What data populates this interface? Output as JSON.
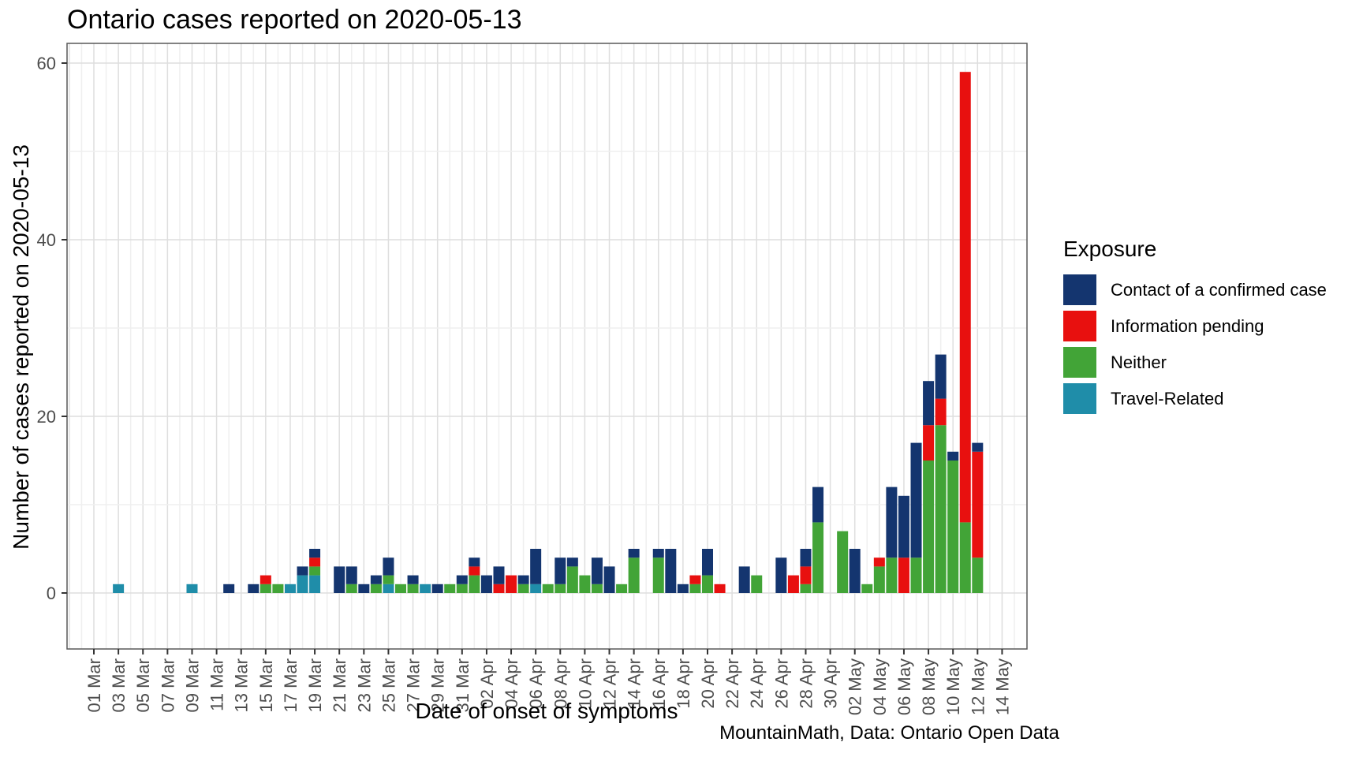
{
  "chart_data": {
    "type": "bar",
    "title": "Ontario cases reported on 2020-05-13",
    "xlabel": "Date of onset of symptoms",
    "ylabel": "Number of cases reported on 2020-05-13",
    "caption": "MountainMath, Data: Ontario Open Data",
    "legend": {
      "title": "Exposure",
      "position": "right",
      "items": [
        {
          "key": "contact",
          "label": "Contact of a confirmed case",
          "color": "#14356F"
        },
        {
          "key": "pending",
          "label": "Information pending",
          "color": "#E8100F"
        },
        {
          "key": "neither",
          "label": "Neither",
          "color": "#42A437"
        },
        {
          "key": "travel",
          "label": "Travel-Related",
          "color": "#1F8DA9"
        }
      ]
    },
    "stack_order_bottom_to_top": [
      "travel",
      "neither",
      "pending",
      "contact"
    ],
    "y_axis": {
      "major_ticks": [
        0,
        20,
        40,
        60
      ],
      "minor_gridlines": [
        10,
        30,
        50
      ],
      "range": [
        0,
        62
      ]
    },
    "x_axis": {
      "grid": "every day, major line on labeled days",
      "tick_labels": [
        "01 Mar",
        "03 Mar",
        "05 Mar",
        "07 Mar",
        "09 Mar",
        "11 Mar",
        "13 Mar",
        "15 Mar",
        "17 Mar",
        "19 Mar",
        "21 Mar",
        "23 Mar",
        "25 Mar",
        "27 Mar",
        "29 Mar",
        "31 Mar",
        "02 Apr",
        "04 Apr",
        "06 Apr",
        "08 Apr",
        "10 Apr",
        "12 Apr",
        "14 Apr",
        "16 Apr",
        "18 Apr",
        "20 Apr",
        "22 Apr",
        "24 Apr",
        "26 Apr",
        "28 Apr",
        "30 Apr",
        "02 May",
        "04 May",
        "06 May",
        "08 May",
        "10 May",
        "12 May",
        "14 May"
      ]
    },
    "bars": [
      {
        "date": "03 Mar",
        "travel": 1,
        "neither": 0,
        "pending": 0,
        "contact": 0
      },
      {
        "date": "09 Mar",
        "travel": 1,
        "neither": 0,
        "pending": 0,
        "contact": 0
      },
      {
        "date": "12 Mar",
        "travel": 0,
        "neither": 0,
        "pending": 0,
        "contact": 1
      },
      {
        "date": "14 Mar",
        "travel": 0,
        "neither": 0,
        "pending": 0,
        "contact": 1
      },
      {
        "date": "15 Mar",
        "travel": 0,
        "neither": 1,
        "pending": 1,
        "contact": 0
      },
      {
        "date": "16 Mar",
        "travel": 0,
        "neither": 1,
        "pending": 0,
        "contact": 0
      },
      {
        "date": "17 Mar",
        "travel": 1,
        "neither": 0,
        "pending": 0,
        "contact": 0
      },
      {
        "date": "18 Mar",
        "travel": 2,
        "neither": 0,
        "pending": 0,
        "contact": 1
      },
      {
        "date": "19 Mar",
        "travel": 2,
        "neither": 1,
        "pending": 1,
        "contact": 1
      },
      {
        "date": "21 Mar",
        "travel": 0,
        "neither": 0,
        "pending": 0,
        "contact": 3
      },
      {
        "date": "22 Mar",
        "travel": 0,
        "neither": 1,
        "pending": 0,
        "contact": 2
      },
      {
        "date": "23 Mar",
        "travel": 0,
        "neither": 0,
        "pending": 0,
        "contact": 1
      },
      {
        "date": "24 Mar",
        "travel": 0,
        "neither": 1,
        "pending": 0,
        "contact": 1
      },
      {
        "date": "25 Mar",
        "travel": 1,
        "neither": 1,
        "pending": 0,
        "contact": 2
      },
      {
        "date": "26 Mar",
        "travel": 0,
        "neither": 1,
        "pending": 0,
        "contact": 0
      },
      {
        "date": "27 Mar",
        "travel": 0,
        "neither": 1,
        "pending": 0,
        "contact": 1
      },
      {
        "date": "28 Mar",
        "travel": 1,
        "neither": 0,
        "pending": 0,
        "contact": 0
      },
      {
        "date": "29 Mar",
        "travel": 0,
        "neither": 0,
        "pending": 0,
        "contact": 1
      },
      {
        "date": "30 Mar",
        "travel": 0,
        "neither": 1,
        "pending": 0,
        "contact": 0
      },
      {
        "date": "31 Mar",
        "travel": 0,
        "neither": 1,
        "pending": 0,
        "contact": 1
      },
      {
        "date": "01 Apr",
        "travel": 0,
        "neither": 2,
        "pending": 1,
        "contact": 1
      },
      {
        "date": "02 Apr",
        "travel": 0,
        "neither": 0,
        "pending": 0,
        "contact": 2
      },
      {
        "date": "03 Apr",
        "travel": 0,
        "neither": 0,
        "pending": 1,
        "contact": 2
      },
      {
        "date": "04 Apr",
        "travel": 0,
        "neither": 0,
        "pending": 2,
        "contact": 0
      },
      {
        "date": "05 Apr",
        "travel": 0,
        "neither": 1,
        "pending": 0,
        "contact": 1
      },
      {
        "date": "06 Apr",
        "travel": 1,
        "neither": 0,
        "pending": 0,
        "contact": 4
      },
      {
        "date": "07 Apr",
        "travel": 0,
        "neither": 1,
        "pending": 0,
        "contact": 0
      },
      {
        "date": "08 Apr",
        "travel": 0,
        "neither": 1,
        "pending": 0,
        "contact": 3
      },
      {
        "date": "09 Apr",
        "travel": 0,
        "neither": 3,
        "pending": 0,
        "contact": 1
      },
      {
        "date": "10 Apr",
        "travel": 0,
        "neither": 2,
        "pending": 0,
        "contact": 0
      },
      {
        "date": "11 Apr",
        "travel": 0,
        "neither": 1,
        "pending": 0,
        "contact": 3
      },
      {
        "date": "12 Apr",
        "travel": 0,
        "neither": 0,
        "pending": 0,
        "contact": 3
      },
      {
        "date": "13 Apr",
        "travel": 0,
        "neither": 1,
        "pending": 0,
        "contact": 0
      },
      {
        "date": "14 Apr",
        "travel": 0,
        "neither": 4,
        "pending": 0,
        "contact": 1
      },
      {
        "date": "16 Apr",
        "travel": 0,
        "neither": 4,
        "pending": 0,
        "contact": 1
      },
      {
        "date": "17 Apr",
        "travel": 0,
        "neither": 0,
        "pending": 0,
        "contact": 5
      },
      {
        "date": "18 Apr",
        "travel": 0,
        "neither": 0,
        "pending": 0,
        "contact": 1
      },
      {
        "date": "19 Apr",
        "travel": 0,
        "neither": 1,
        "pending": 1,
        "contact": 0
      },
      {
        "date": "20 Apr",
        "travel": 0,
        "neither": 2,
        "pending": 0,
        "contact": 3
      },
      {
        "date": "21 Apr",
        "travel": 0,
        "neither": 0,
        "pending": 1,
        "contact": 0
      },
      {
        "date": "23 Apr",
        "travel": 0,
        "neither": 0,
        "pending": 0,
        "contact": 3
      },
      {
        "date": "24 Apr",
        "travel": 0,
        "neither": 2,
        "pending": 0,
        "contact": 0
      },
      {
        "date": "26 Apr",
        "travel": 0,
        "neither": 0,
        "pending": 0,
        "contact": 4
      },
      {
        "date": "27 Apr",
        "travel": 0,
        "neither": 0,
        "pending": 2,
        "contact": 0
      },
      {
        "date": "28 Apr",
        "travel": 0,
        "neither": 1,
        "pending": 2,
        "contact": 2
      },
      {
        "date": "29 Apr",
        "travel": 0,
        "neither": 8,
        "pending": 0,
        "contact": 4
      },
      {
        "date": "01 May",
        "travel": 0,
        "neither": 7,
        "pending": 0,
        "contact": 0
      },
      {
        "date": "02 May",
        "travel": 0,
        "neither": 0,
        "pending": 0,
        "contact": 5
      },
      {
        "date": "03 May",
        "travel": 0,
        "neither": 1,
        "pending": 0,
        "contact": 0
      },
      {
        "date": "04 May",
        "travel": 0,
        "neither": 3,
        "pending": 1,
        "contact": 0
      },
      {
        "date": "05 May",
        "travel": 0,
        "neither": 4,
        "pending": 0,
        "contact": 8
      },
      {
        "date": "06 May",
        "travel": 0,
        "neither": 0,
        "pending": 4,
        "contact": 7
      },
      {
        "date": "07 May",
        "travel": 0,
        "neither": 4,
        "pending": 0,
        "contact": 13
      },
      {
        "date": "08 May",
        "travel": 0,
        "neither": 15,
        "pending": 4,
        "contact": 5
      },
      {
        "date": "09 May",
        "travel": 0,
        "neither": 19,
        "pending": 3,
        "contact": 5
      },
      {
        "date": "10 May",
        "travel": 0,
        "neither": 15,
        "pending": 0,
        "contact": 1
      },
      {
        "date": "11 May",
        "travel": 0,
        "neither": 8,
        "pending": 51,
        "contact": 0
      },
      {
        "date": "12 May",
        "travel": 0,
        "neither": 4,
        "pending": 12,
        "contact": 1
      }
    ]
  }
}
